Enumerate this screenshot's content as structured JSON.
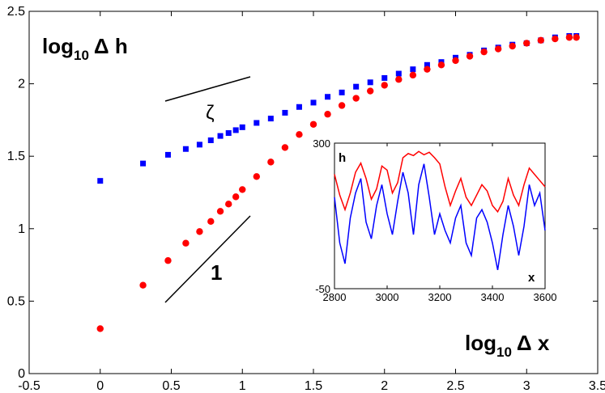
{
  "chart_data": [
    {
      "type": "scatter",
      "x_label": {
        "main": "log",
        "sub": "10",
        "rest": "Δ x"
      },
      "y_label": {
        "main": "log",
        "sub": "10",
        "rest": "Δ h"
      },
      "annotations": [
        "ζ",
        "1"
      ],
      "xlim": [
        -0.5,
        3.5
      ],
      "xticks": [
        -0.5,
        0,
        0.5,
        1,
        1.5,
        2,
        2.5,
        3,
        3.5
      ],
      "ylim": [
        0,
        2.5
      ],
      "yticks": [
        0,
        0.5,
        1,
        1.5,
        2,
        2.5
      ],
      "x": [
        0,
        0.301,
        0.477,
        0.602,
        0.699,
        0.778,
        0.845,
        0.903,
        0.954,
        1.0,
        1.1,
        1.2,
        1.3,
        1.4,
        1.5,
        1.6,
        1.7,
        1.8,
        1.9,
        2.0,
        2.1,
        2.2,
        2.3,
        2.4,
        2.5,
        2.6,
        2.7,
        2.8,
        2.9,
        3.0,
        3.1,
        3.2,
        3.3,
        3.35
      ],
      "series": [
        {
          "name": "blue",
          "color": "#0000ff",
          "marker": "square",
          "values": [
            1.33,
            1.45,
            1.51,
            1.55,
            1.58,
            1.61,
            1.64,
            1.66,
            1.68,
            1.7,
            1.73,
            1.76,
            1.8,
            1.84,
            1.87,
            1.91,
            1.94,
            1.98,
            2.01,
            2.04,
            2.07,
            2.1,
            2.13,
            2.15,
            2.18,
            2.2,
            2.23,
            2.25,
            2.27,
            2.28,
            2.3,
            2.32,
            2.33,
            2.33
          ]
        },
        {
          "name": "red",
          "color": "#ff0000",
          "marker": "circle",
          "values": [
            0.31,
            0.61,
            0.78,
            0.9,
            0.98,
            1.05,
            1.12,
            1.17,
            1.22,
            1.27,
            1.36,
            1.46,
            1.56,
            1.65,
            1.72,
            1.79,
            1.85,
            1.9,
            1.95,
            1.99,
            2.03,
            2.06,
            2.1,
            2.13,
            2.16,
            2.19,
            2.22,
            2.24,
            2.26,
            2.28,
            2.3,
            2.31,
            2.32,
            2.32
          ]
        }
      ]
    },
    {
      "type": "line",
      "y_label": "h",
      "x_label": "x",
      "xlim": [
        2800,
        3600
      ],
      "xticks": [
        2800,
        3000,
        3200,
        3400,
        3600
      ],
      "ylim": [
        -50,
        300
      ],
      "yticks": [
        -50,
        300
      ],
      "x": [
        2800,
        2820,
        2840,
        2860,
        2880,
        2900,
        2920,
        2940,
        2960,
        2980,
        3000,
        3020,
        3040,
        3060,
        3080,
        3100,
        3120,
        3140,
        3160,
        3180,
        3200,
        3220,
        3240,
        3260,
        3280,
        3300,
        3320,
        3340,
        3360,
        3380,
        3400,
        3420,
        3440,
        3460,
        3480,
        3500,
        3520,
        3540,
        3560,
        3580,
        3600
      ],
      "series": [
        {
          "name": "profile",
          "color": "#0000ff",
          "values": [
            170,
            60,
            10,
            120,
            180,
            215,
            110,
            70,
            150,
            200,
            130,
            80,
            160,
            230,
            180,
            80,
            200,
            250,
            170,
            80,
            130,
            90,
            60,
            120,
            150,
            60,
            30,
            120,
            140,
            110,
            60,
            -5,
            80,
            150,
            100,
            30,
            100,
            200,
            150,
            180,
            90
          ]
        },
        {
          "name": "envelope",
          "color": "#ff0000",
          "values": [
            225,
            175,
            140,
            180,
            230,
            252,
            215,
            165,
            190,
            245,
            235,
            180,
            205,
            265,
            275,
            270,
            280,
            272,
            278,
            265,
            250,
            195,
            150,
            185,
            215,
            170,
            150,
            175,
            200,
            185,
            150,
            135,
            160,
            215,
            175,
            150,
            200,
            240,
            225,
            210,
            195
          ]
        }
      ]
    }
  ]
}
